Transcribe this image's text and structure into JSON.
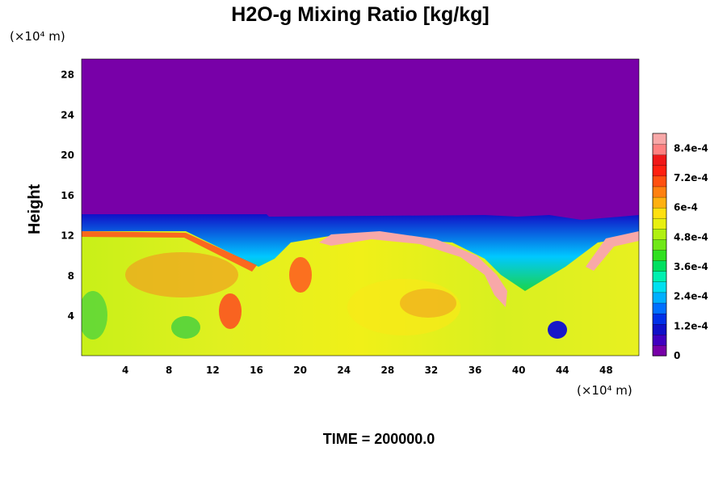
{
  "chart_data": {
    "type": "heatmap",
    "title": "H2O-g Mixing Ratio [kg/kg]",
    "ylabel": "Height",
    "xunit": "(×10⁴ m)",
    "yunit": "(×10⁴ m)",
    "x_ticks": [
      "4",
      "8",
      "12",
      "16",
      "20",
      "24",
      "28",
      "32",
      "36",
      "40",
      "44",
      "48"
    ],
    "y_ticks": [
      "4",
      "8",
      "12",
      "16",
      "20",
      "24",
      "28"
    ],
    "xlim": [
      0,
      51
    ],
    "ylim": [
      0,
      29.5
    ],
    "colorbar": {
      "range": [
        0,
        0.0009
      ],
      "tick_labels": [
        "0",
        "1.2e-4",
        "2.4e-4",
        "3.6e-4",
        "4.8e-4",
        "6e-4",
        "7.2e-4",
        "8.4e-4"
      ],
      "tick_values": [
        0,
        0.00012,
        0.00024,
        0.00036,
        0.00048,
        0.0006,
        0.00072,
        0.00084
      ]
    },
    "time_label": "TIME = 200000.0"
  }
}
